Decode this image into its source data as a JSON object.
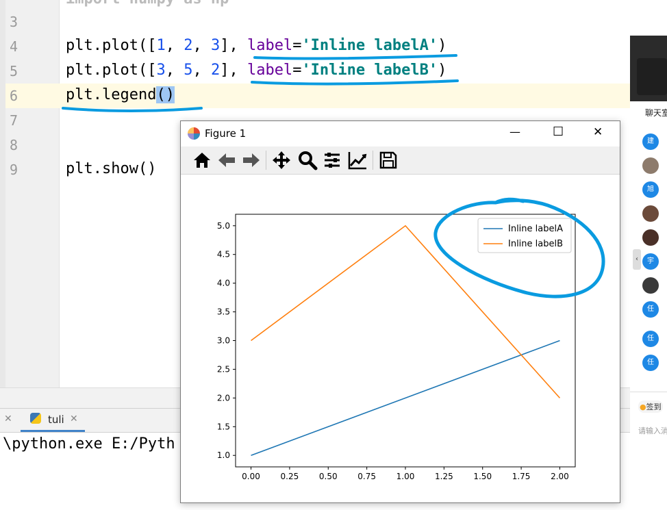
{
  "editor": {
    "line_numbers": [
      "3",
      "4",
      "5",
      "6",
      "7",
      "8",
      "9"
    ],
    "line1_partial": "import numpy as np",
    "line4": {
      "a": "plt.plot([",
      "n1": "1",
      "c1": ", ",
      "n2": "2",
      "c2": ", ",
      "n3": "3",
      "b": "], ",
      "kw": "label",
      "eq": "=",
      "str": "'Inline labelA'",
      "end": ")"
    },
    "line5": {
      "a": "plt.plot([",
      "n1": "3",
      "c1": ", ",
      "n2": "5",
      "c2": ", ",
      "n3": "2",
      "b": "], ",
      "kw": "label",
      "eq": "=",
      "str": "'Inline labelB'",
      "end": ")"
    },
    "line6": {
      "a": "plt.legend",
      "sel": "()"
    },
    "line9": "plt.show()"
  },
  "run_panel": {
    "tab_label": "tuli",
    "console_text": "\\python.exe E:/Pyth"
  },
  "chat_app": {
    "tab_label": "聊天室",
    "avatars": [
      "建",
      "",
      "旭",
      "",
      "",
      "宇",
      "",
      "任",
      "任",
      "任"
    ],
    "sign_label": "签到",
    "input_placeholder": "请输入消"
  },
  "figure": {
    "title": "Figure 1",
    "controls": {
      "minimize": "—",
      "maximize": "☐",
      "close": "✕"
    },
    "toolbar": [
      "home-icon",
      "back-icon",
      "forward-icon",
      "pan-icon",
      "zoom-icon",
      "subplots-icon",
      "axes-edit-icon",
      "save-icon"
    ]
  },
  "chart_data": {
    "type": "line",
    "x": [
      0,
      1,
      2
    ],
    "series": [
      {
        "name": "Inline labelA",
        "values": [
          1,
          2,
          3
        ],
        "color": "#1f77b4"
      },
      {
        "name": "Inline labelB",
        "values": [
          3,
          5,
          2
        ],
        "color": "#ff7f0e"
      }
    ],
    "xlim": [
      -0.1,
      2.1
    ],
    "ylim": [
      0.8,
      5.2
    ],
    "xticks": [
      "0.00",
      "0.25",
      "0.50",
      "0.75",
      "1.00",
      "1.25",
      "1.50",
      "1.75",
      "2.00"
    ],
    "yticks": [
      "1.0",
      "1.5",
      "2.0",
      "2.5",
      "3.0",
      "3.5",
      "4.0",
      "4.5",
      "5.0"
    ],
    "legend_position": "top-right",
    "grid": false
  },
  "annotation_color": "#0a9be0"
}
